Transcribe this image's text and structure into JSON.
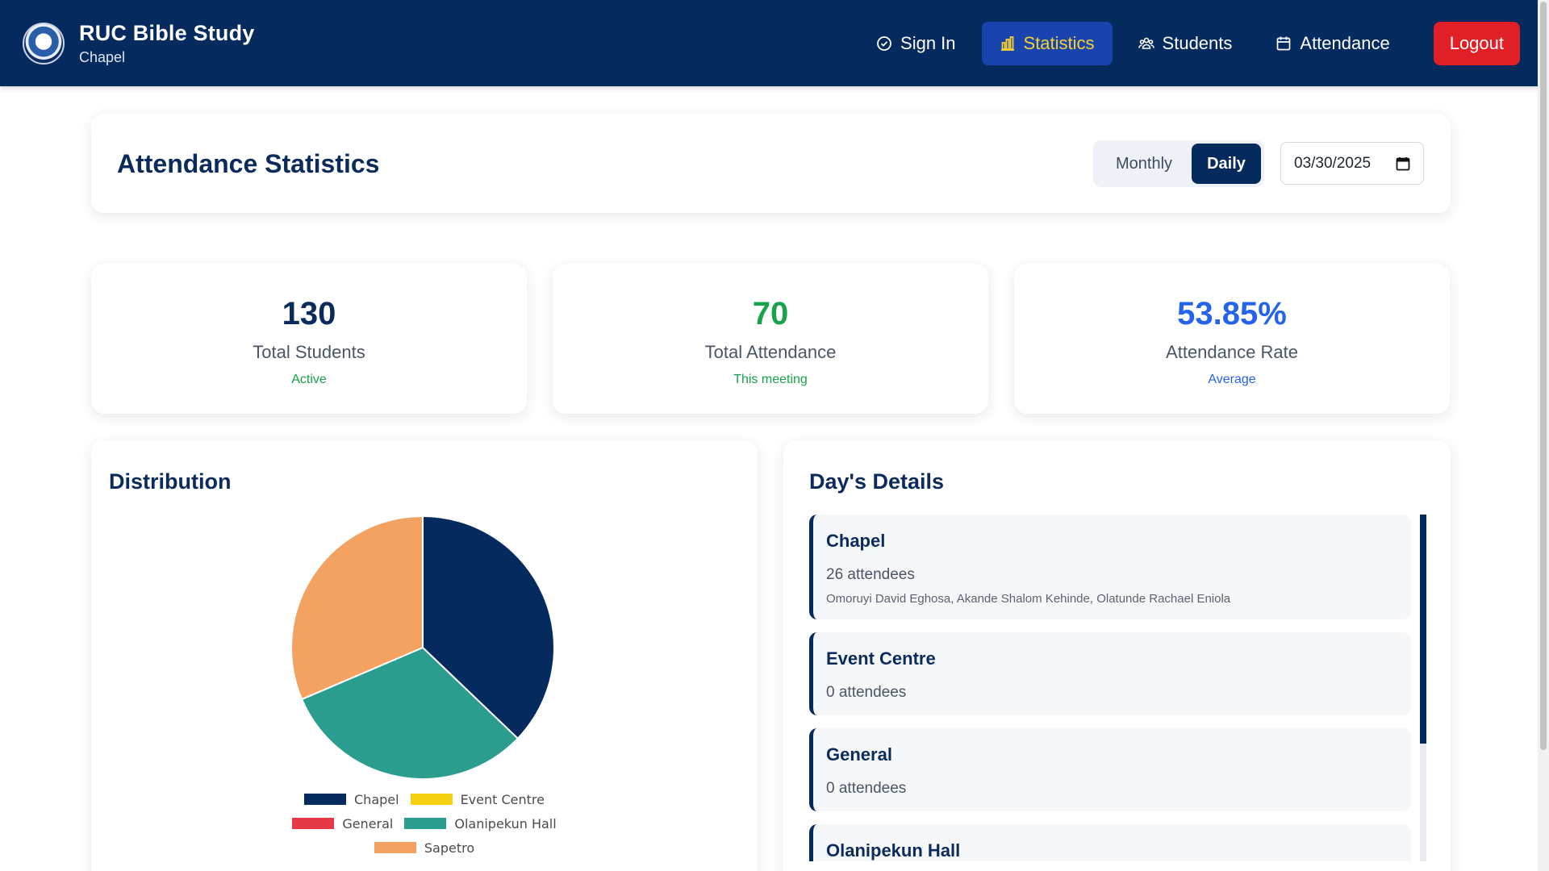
{
  "header": {
    "title": "RUC Bible Study",
    "subtitle": "Chapel",
    "nav": [
      {
        "label": "Sign In",
        "icon": "check-circle-icon"
      },
      {
        "label": "Statistics",
        "icon": "bar-chart-icon"
      },
      {
        "label": "Students",
        "icon": "users-icon"
      },
      {
        "label": "Attendance",
        "icon": "calendar-icon"
      }
    ],
    "logout_label": "Logout"
  },
  "page": {
    "title": "Attendance Statistics",
    "toggle": {
      "monthly": "Monthly",
      "daily": "Daily",
      "selected": "Daily"
    },
    "date_value": "03/30/2025"
  },
  "stats": [
    {
      "value": "130",
      "label": "Total Students",
      "sub": "Active",
      "color": "#0b2b5c",
      "sub_color": "#16a34a"
    },
    {
      "value": "70",
      "label": "Total Attendance",
      "sub": "This meeting",
      "color": "#16a34a",
      "sub_color": "#16a34a"
    },
    {
      "value": "53.85%",
      "label": "Attendance Rate",
      "sub": "Average",
      "color": "#2563eb",
      "sub_color": "#2563eb"
    }
  ],
  "distribution": {
    "title": "Distribution",
    "chart_data": {
      "type": "pie",
      "labels": [
        "Chapel",
        "Event Centre",
        "General",
        "Olanipekun Hall",
        "Sapetro"
      ],
      "values": [
        26,
        0,
        0,
        22,
        22
      ],
      "colors": [
        "#052a5e",
        "#f6d112",
        "#e53946",
        "#2a9d8f",
        "#f4a261"
      ],
      "legend": "bottom"
    }
  },
  "details": {
    "title": "Day's Details",
    "items": [
      {
        "name": "Chapel",
        "count": "26 attendees",
        "names": "Omoruyi David Eghosa, Akande Shalom Kehinde, Olatunde Rachael Eniola"
      },
      {
        "name": "Event Centre",
        "count": "0 attendees",
        "names": ""
      },
      {
        "name": "General",
        "count": "0 attendees",
        "names": ""
      },
      {
        "name": "Olanipekun Hall",
        "count": "",
        "names": ""
      }
    ]
  }
}
